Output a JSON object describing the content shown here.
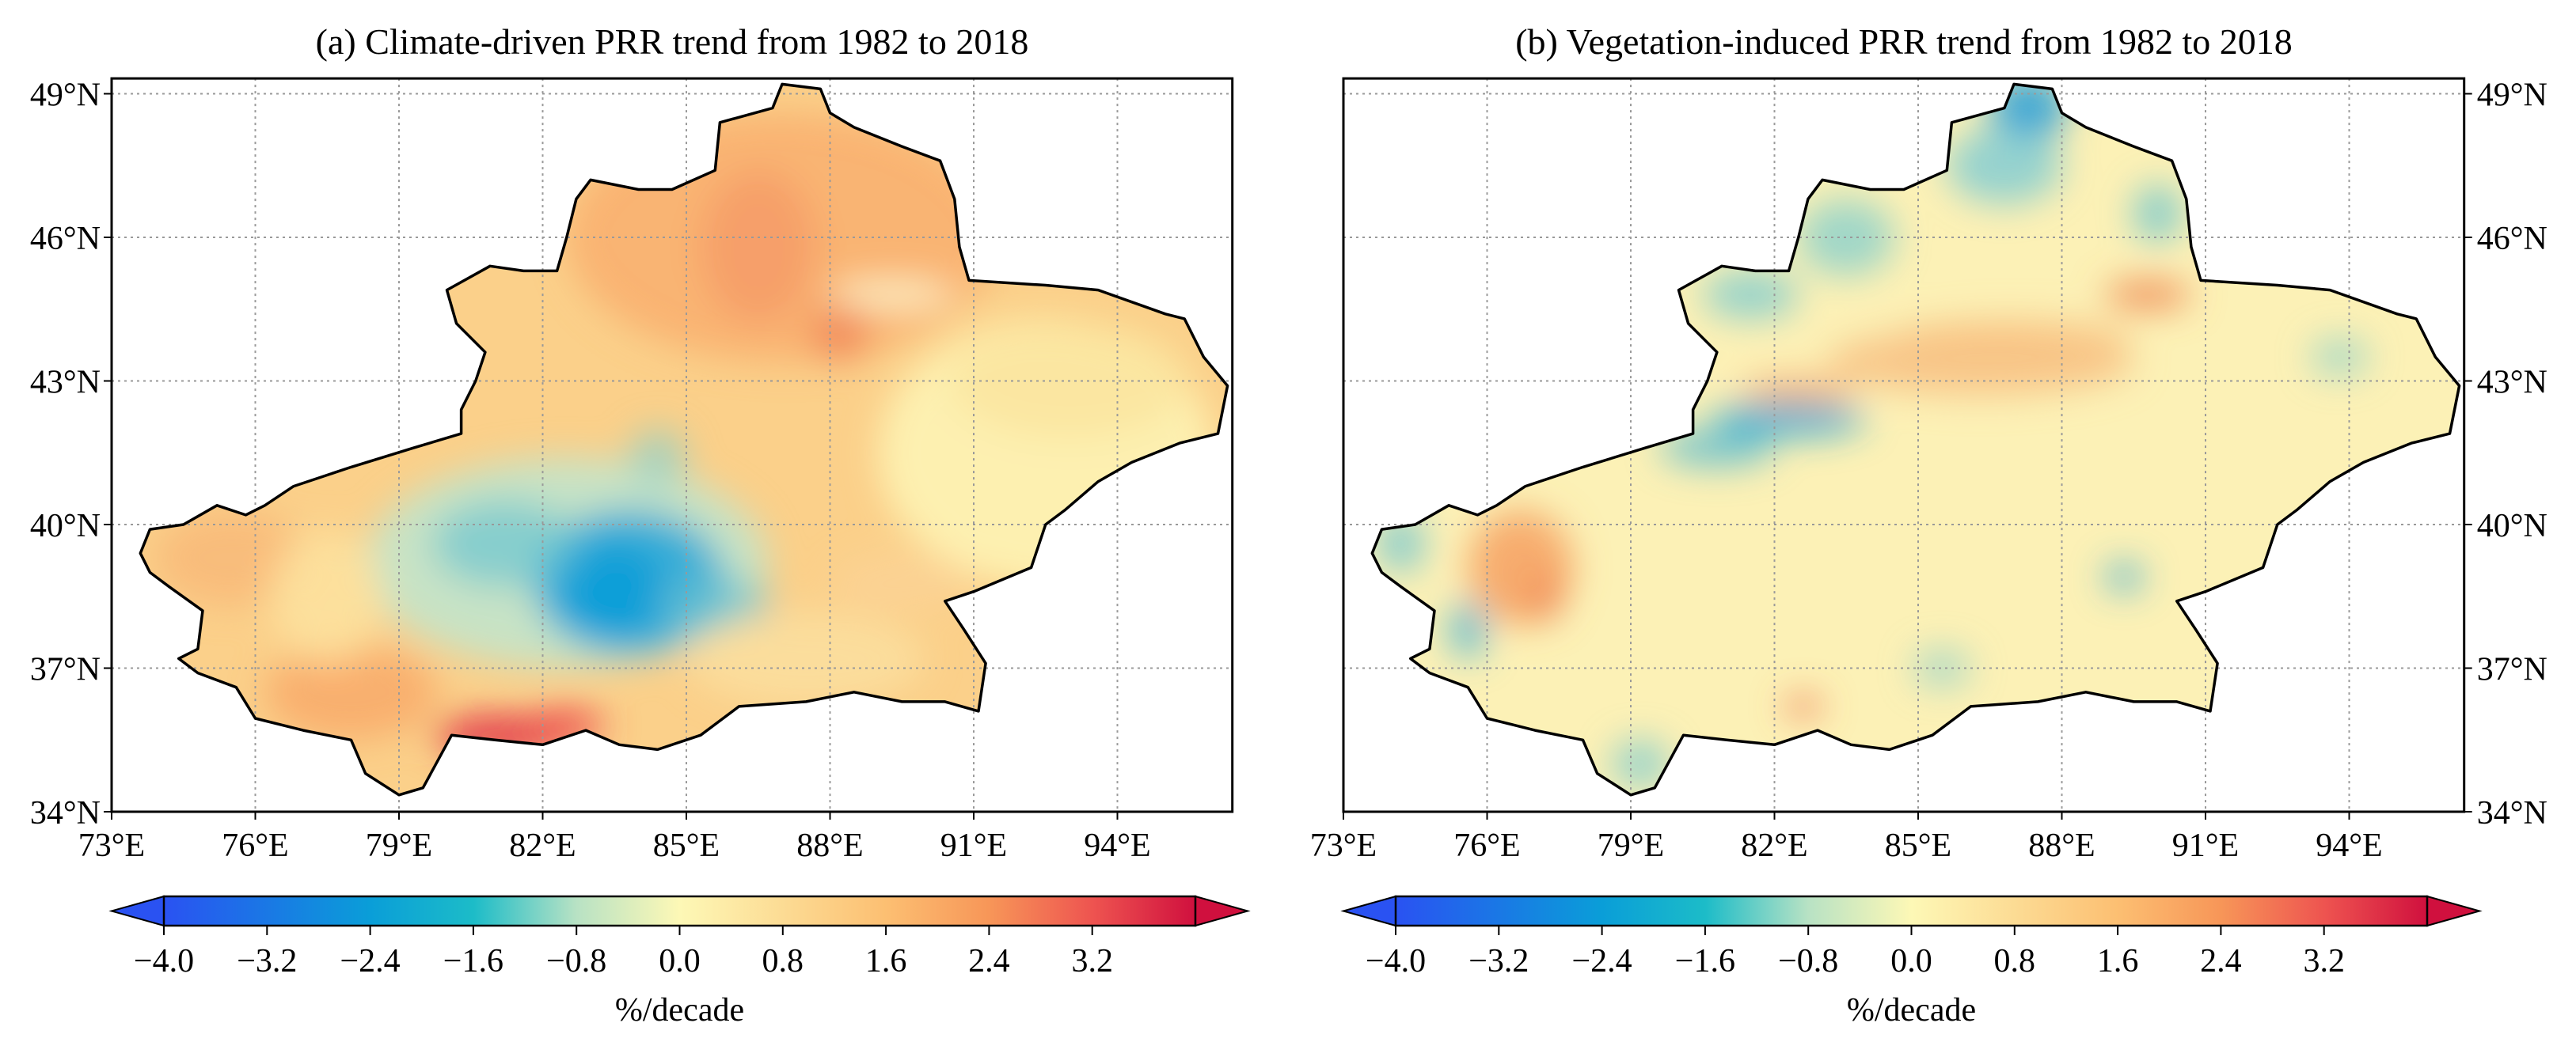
{
  "figure": {
    "panels": [
      {
        "id": "a",
        "title": "(a) Climate-driven PRR trend from 1982 to 2018",
        "variable": "climate-driven PRR trend",
        "x_ticks": [
          "73°E",
          "76°E",
          "79°E",
          "82°E",
          "85°E",
          "88°E",
          "91°E",
          "94°E"
        ],
        "y_ticks": [
          "34°N",
          "37°N",
          "40°N",
          "43°N",
          "46°N",
          "49°N"
        ],
        "y_axis_side": "left",
        "colorbar": {
          "ticks": [
            "−4.0",
            "−3.2",
            "−2.4",
            "−1.6",
            "−0.8",
            "0.0",
            "0.8",
            "1.6",
            "2.4",
            "3.2"
          ],
          "label": "%/decade"
        }
      },
      {
        "id": "b",
        "title": "(b) Vegetation-induced PRR trend from 1982 to 2018",
        "variable": "vegetation-induced PRR trend",
        "x_ticks": [
          "73°E",
          "76°E",
          "79°E",
          "82°E",
          "85°E",
          "88°E",
          "91°E",
          "94°E"
        ],
        "y_ticks": [
          "34°N",
          "37°N",
          "40°N",
          "43°N",
          "46°N",
          "49°N"
        ],
        "y_axis_side": "right",
        "colorbar": {
          "ticks": [
            "−4.0",
            "−3.2",
            "−2.4",
            "−1.6",
            "−0.8",
            "0.0",
            "0.8",
            "1.6",
            "2.4",
            "3.2"
          ],
          "label": "%/decade"
        }
      }
    ]
  },
  "chart_data": {
    "type": "heatmap",
    "subtype": "geographic map",
    "region": "Xinjiang, China",
    "lon_range": [
      73,
      96.4
    ],
    "lat_range": [
      34,
      49.3
    ],
    "lon_ticks": [
      73,
      76,
      79,
      82,
      85,
      88,
      91,
      94
    ],
    "lat_ticks": [
      34,
      37,
      40,
      43,
      46,
      49
    ],
    "colorbar_range": [
      -4.0,
      4.0
    ],
    "colorbar_extend": "both",
    "colorbar_units": "%/decade",
    "colormap": [
      {
        "value": -4.0,
        "color": "#2a52f2"
      },
      {
        "value": -2.4,
        "color": "#0a9ed8"
      },
      {
        "value": -1.6,
        "color": "#1cbcc8"
      },
      {
        "value": -0.8,
        "color": "#b8e2c4"
      },
      {
        "value": 0.0,
        "color": "#fdf8b6"
      },
      {
        "value": 1.6,
        "color": "#fcbf72"
      },
      {
        "value": 2.4,
        "color": "#f79658"
      },
      {
        "value": 3.2,
        "color": "#ee5450"
      },
      {
        "value": 4.0,
        "color": "#d0103e"
      }
    ],
    "grid": true
  }
}
